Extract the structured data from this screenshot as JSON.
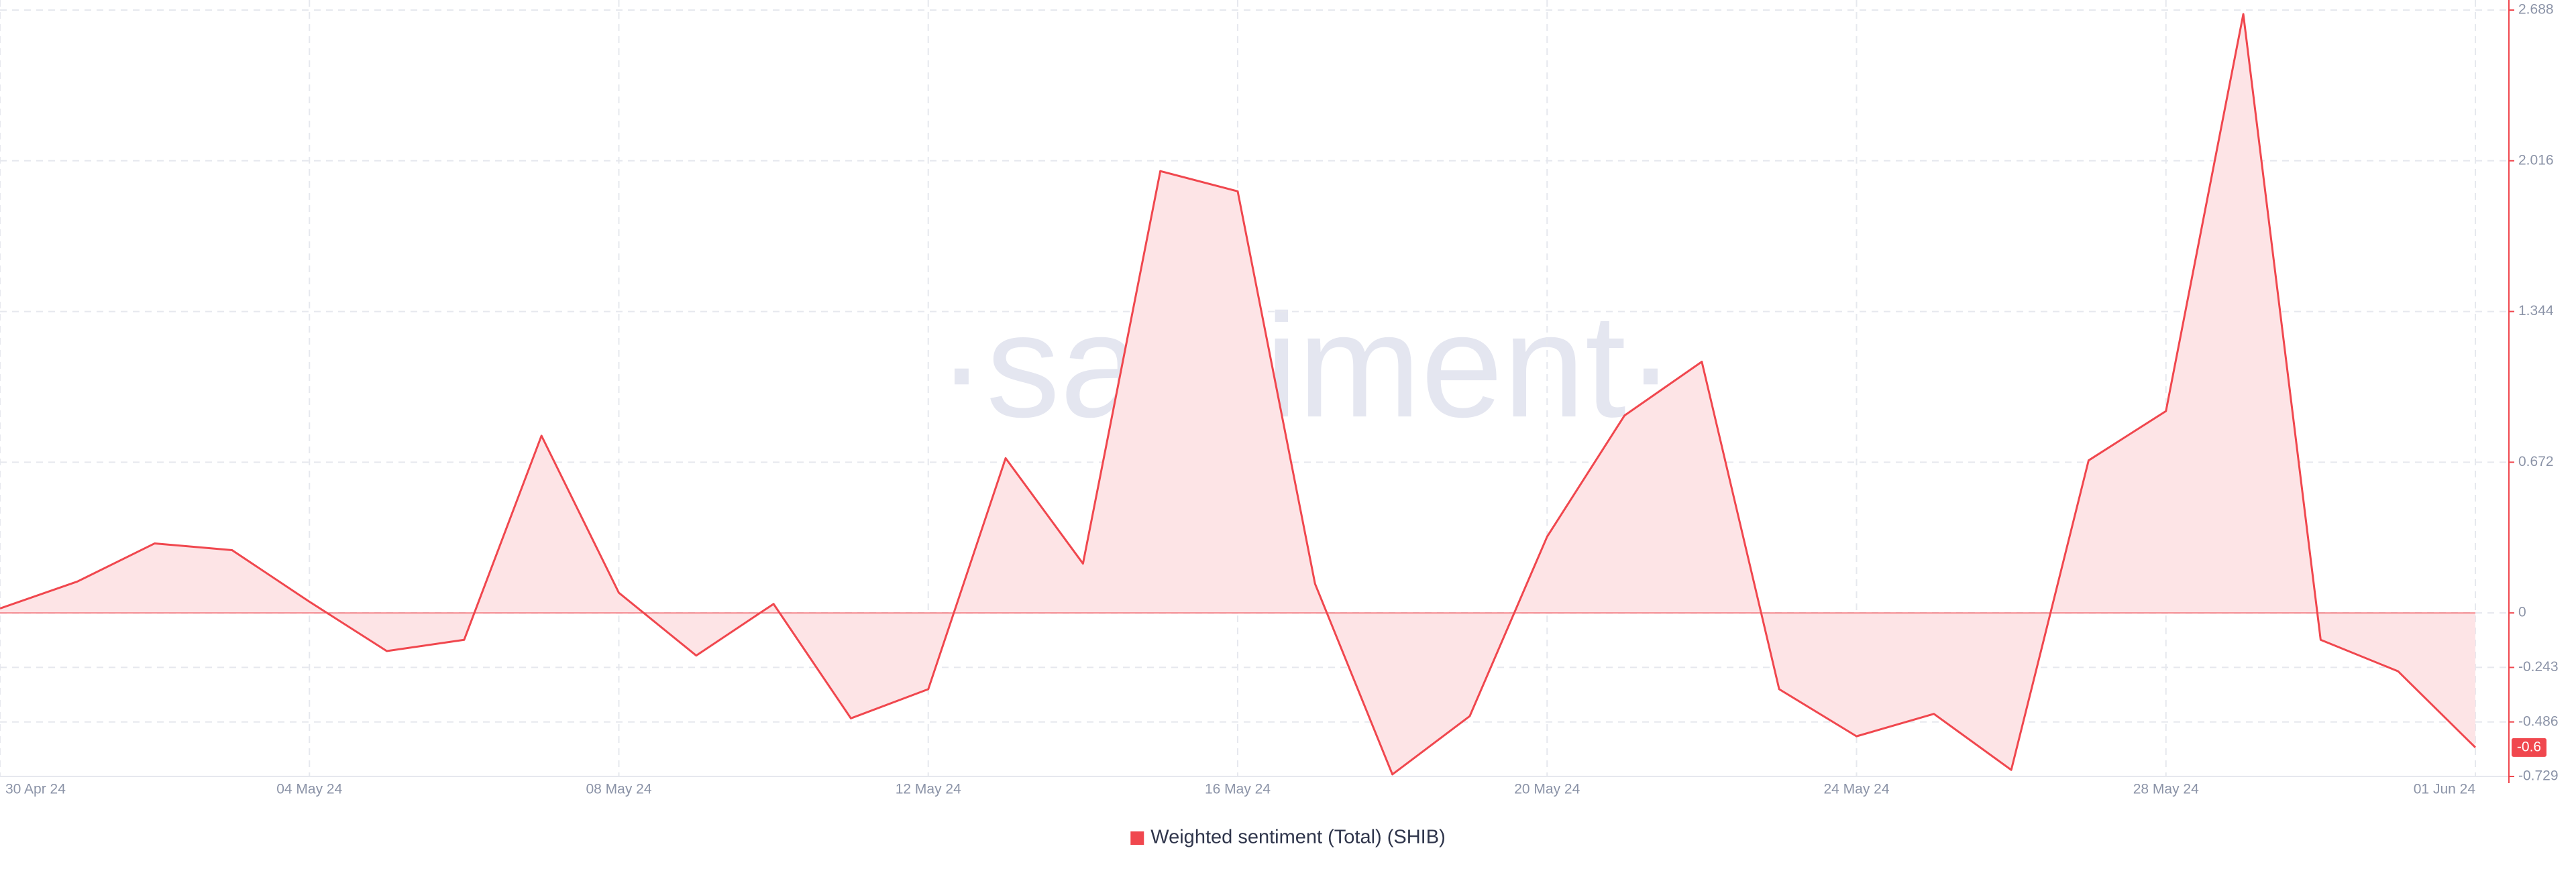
{
  "chart_data": {
    "type": "area",
    "watermark": "·santiment·",
    "categories": [
      "30 Apr 24",
      null,
      null,
      null,
      "04 May 24",
      null,
      null,
      null,
      "08 May 24",
      null,
      null,
      null,
      "12 May 24",
      null,
      null,
      null,
      "16 May 24",
      null,
      null,
      null,
      "20 May 24",
      null,
      null,
      null,
      "24 May 24",
      null,
      null,
      null,
      "28 May 24",
      null,
      null,
      null,
      "01 Jun 24"
    ],
    "series": [
      {
        "name": "Weighted sentiment (Total) (SHIB)",
        "color": "#f0474e",
        "fill": "#fde4e6",
        "values": [
          0.02,
          0.14,
          0.31,
          0.28,
          0.05,
          -0.17,
          -0.12,
          0.79,
          0.09,
          -0.19,
          0.04,
          -0.47,
          -0.34,
          0.69,
          0.22,
          1.97,
          1.88,
          0.13,
          -0.72,
          -0.46,
          0.34,
          0.88,
          1.12,
          -0.34,
          -0.55,
          -0.45,
          -0.7,
          0.68,
          0.9,
          2.67,
          -0.12,
          -0.26,
          -0.6
        ],
        "value_labels": [
          null,
          null,
          null,
          null,
          null,
          null,
          null,
          null,
          null,
          null,
          null,
          null,
          null,
          null,
          null,
          null,
          null,
          null,
          null,
          null,
          null,
          null,
          null,
          null,
          null,
          null,
          null,
          null,
          null,
          null,
          null,
          null,
          "-0.6"
        ]
      }
    ],
    "ylim": [
      -0.729,
      2.688
    ],
    "yticks": [
      2.688,
      2.016,
      1.344,
      0.672,
      0,
      -0.243,
      -0.486,
      -0.729
    ],
    "grid": true,
    "legend": "bottom"
  }
}
